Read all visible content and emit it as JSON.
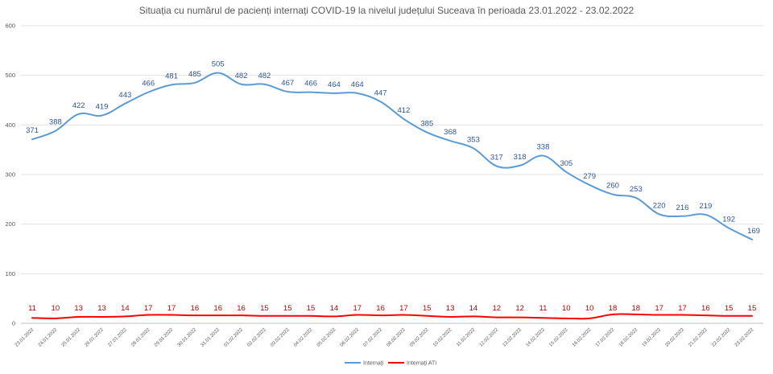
{
  "chart_data": {
    "type": "line",
    "title": "Situația cu numărul de pacienți internați COVID-19 la nivelul județului Suceava în perioada 23.01.2022 - 23.02.2022",
    "xlabel": "",
    "ylabel": "",
    "ylim": [
      0,
      600
    ],
    "yticks": [
      "0",
      "100",
      "200",
      "300",
      "400",
      "500",
      "600"
    ],
    "grid": true,
    "legend": "bottom",
    "categories": [
      "23.01.2022",
      "24.01.2022",
      "25.01.2022",
      "26.01.2022",
      "27.01.2022",
      "28.01.2022",
      "29.01.2022",
      "30.01.2022",
      "31.01.2022",
      "01.02.2022",
      "02.02.2022",
      "03.02.2022",
      "04.02.2022",
      "05.02.2022",
      "06.02.2022",
      "07.02.2022",
      "08.02.2022",
      "09.02.2022",
      "10.02.2022",
      "11.02.2022",
      "12.02.2022",
      "13.02.2022",
      "14.02.2022",
      "15.02.2022",
      "16.02.2022",
      "17.02.2022",
      "18.02.2022",
      "19.02.2022",
      "20.02.2022",
      "21.02.2022",
      "22.02.2022",
      "23.02.2022"
    ],
    "series": [
      {
        "name": "Internați",
        "color": "#5B9BD5",
        "label_color": "#2F5597",
        "values": [
          371,
          388,
          422,
          419,
          443,
          466,
          481,
          485,
          505,
          482,
          482,
          467,
          466,
          464,
          464,
          447,
          412,
          385,
          368,
          353,
          317,
          318,
          338,
          305,
          279,
          260,
          253,
          220,
          216,
          219,
          192,
          169
        ]
      },
      {
        "name": "Internați ATI",
        "color": "#FF0000",
        "label_color": "#C00000",
        "values": [
          11,
          10,
          13,
          13,
          14,
          17,
          17,
          16,
          16,
          16,
          15,
          15,
          15,
          14,
          17,
          16,
          17,
          15,
          13,
          14,
          12,
          12,
          11,
          10,
          10,
          18,
          18,
          17,
          17,
          16,
          15,
          15
        ]
      }
    ]
  }
}
